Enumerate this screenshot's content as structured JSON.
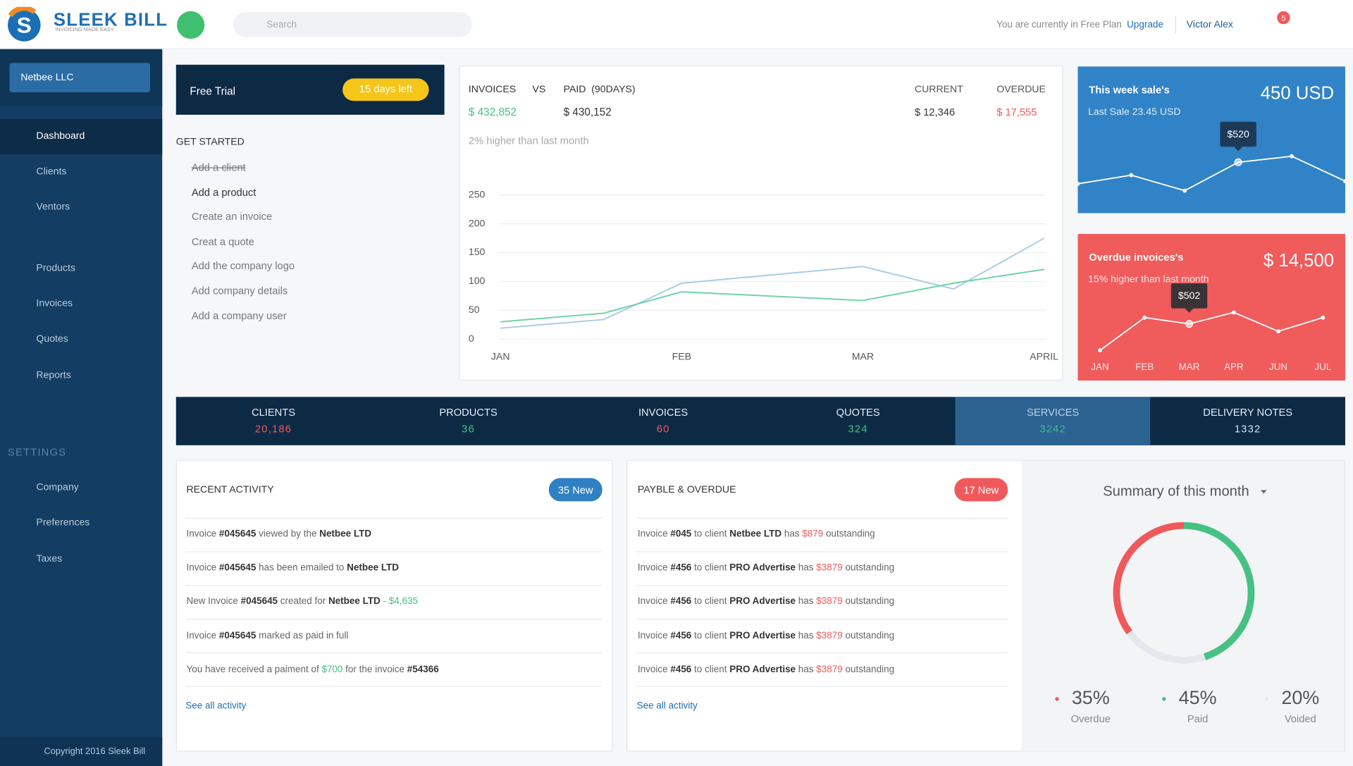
{
  "header": {
    "logo_title": "SLEEK BILL",
    "logo_tagline": "INVOICING MADE EASY",
    "search_placeholder": "Search",
    "plan_text": "You are currently in Free Plan",
    "upgrade": "Upgrade",
    "user": "Victor Alex",
    "notifications": "5"
  },
  "sidebar": {
    "company": "Netbee LLC",
    "menu": [
      "Dashboard",
      "Clients",
      "Ventors",
      "Products",
      "Invoices",
      "Quotes",
      "Reports"
    ],
    "settings_title": "SETTINGS",
    "settings_menu": [
      "Company",
      "Preferences",
      "Taxes"
    ],
    "footer": "Copyright 2016 Sleek Bill"
  },
  "trial": {
    "title": "Free Trial",
    "badge": "15 days left"
  },
  "get_started": {
    "title": "GET STARTED",
    "items": [
      {
        "label": "Add a client",
        "done": true
      },
      {
        "label": "Add a product",
        "done": false
      },
      {
        "label": "Create an invoice",
        "done": false
      },
      {
        "label": "Creat a quote",
        "done": false
      },
      {
        "label": "Add the company logo",
        "done": false
      },
      {
        "label": "Add company details",
        "done": false
      },
      {
        "label": "Add a company user",
        "done": false
      }
    ]
  },
  "overview": {
    "invoices_label": "INVOICES",
    "vs": "VS",
    "paid_label": "PAID  (90DAYS)",
    "current_label": "CURRENT",
    "overdue_label": "OVERDUE",
    "invoices": "$ 432,852",
    "paid": "$ 430,152",
    "current": "$ 12,346",
    "overdue": "$ 17,555",
    "note": "2% higher than last month"
  },
  "charts": {
    "revenue": {
      "type": "line",
      "xlim": [
        0,
        3
      ],
      "xticks": [
        {
          "value": 0,
          "label": "JAN"
        },
        {
          "value": 1,
          "label": "FEB"
        },
        {
          "value": 2,
          "label": "MAR"
        },
        {
          "value": 3,
          "label": "APRIL"
        }
      ],
      "ylim": [
        0,
        250
      ],
      "yticks": [
        0,
        50,
        100,
        150,
        200,
        250
      ],
      "grid": true,
      "x": [
        0,
        0.57,
        1,
        2,
        2.5,
        3
      ],
      "series": [
        {
          "color": "#a6cde8",
          "values": [
            19,
            34,
            97,
            126,
            87,
            175
          ]
        },
        {
          "color": "#6fd3a5",
          "values": [
            30,
            45,
            82,
            67,
            97,
            121
          ]
        }
      ]
    },
    "week_sales": {
      "type": "line",
      "title": "This week sale's",
      "total": "450 USD",
      "subtitle": "Last Sale 23.45 USD",
      "ylim": [
        0,
        1500
      ],
      "color": "#ffffff",
      "values": [
        300,
        388,
        230,
        520,
        582,
        327
      ],
      "value_labels": [
        null,
        null,
        null,
        "$520",
        null,
        null
      ]
    },
    "overdue": {
      "type": "line",
      "title": "Overdue invoices's",
      "total": "$ 14,500",
      "subtitle": "15% higher than last month",
      "ylim": [
        0,
        1300
      ],
      "color": "#ffffff",
      "categories": [
        "JAN",
        "FEB",
        "MAR",
        "APR",
        "JUN",
        "JUL"
      ],
      "values": [
        268,
        558,
        502,
        604,
        436,
        558
      ],
      "value_labels": [
        null,
        null,
        "$502",
        null,
        null,
        null
      ]
    },
    "summary": {
      "type": "donut",
      "title": "Summary of this month",
      "categories": [
        "Overdue",
        "Paid",
        "Voided"
      ],
      "values": [
        35,
        45,
        20
      ],
      "value_labels": [
        "35%",
        "45%",
        "20%"
      ],
      "colors": [
        "#f0595b",
        "#45c283",
        "#e4e8ec"
      ]
    }
  },
  "stats": [
    {
      "label": "CLIENTS",
      "value": "20,186",
      "color": "#f0595b",
      "active": false
    },
    {
      "label": "PRODUCTS",
      "value": "36",
      "color": "#45c283",
      "active": false
    },
    {
      "label": "INVOICES",
      "value": "60",
      "color": "#f0595b",
      "active": false
    },
    {
      "label": "QUOTES",
      "value": "324",
      "color": "#45c283",
      "active": false
    },
    {
      "label": "SERVICES",
      "value": "3242",
      "color": "#3fb894",
      "active": true
    },
    {
      "label": "DELIVERY NOTES",
      "value": "1332",
      "color": "#d3e3f0",
      "active": false
    }
  ],
  "activity": {
    "title": "RECENT ACTIVITY",
    "badge": "35 New",
    "link": "See all activity",
    "rows": [
      [
        {
          "text": "Invoice "
        },
        {
          "text": "#045645",
          "style": "bold"
        },
        {
          "text": " viewed by the "
        },
        {
          "text": "Netbee LTD",
          "style": "bold"
        }
      ],
      [
        {
          "text": "Invoice "
        },
        {
          "text": "#045645",
          "style": "bold"
        },
        {
          "text": " has been emailed to "
        },
        {
          "text": "Netbee LTD",
          "style": "bold"
        }
      ],
      [
        {
          "text": "New Invoice "
        },
        {
          "text": "#045645",
          "style": "bold"
        },
        {
          "text": " created for "
        },
        {
          "text": "Netbee LTD",
          "style": "bold"
        },
        {
          "text": " - $4,635",
          "style": "green"
        }
      ],
      [
        {
          "text": "Invoice "
        },
        {
          "text": "#045645",
          "style": "bold"
        },
        {
          "text": " marked as paid in full"
        }
      ],
      [
        {
          "text": "You have received a paiment of "
        },
        {
          "text": "$700",
          "style": "green"
        },
        {
          "text": " for the invoice "
        },
        {
          "text": "#54366",
          "style": "bold"
        }
      ]
    ]
  },
  "payable": {
    "title": "PAYBLE & OVERDUE",
    "badge": "17 New",
    "link": "See all activity",
    "rows": [
      [
        {
          "text": "Invoice "
        },
        {
          "text": "#045",
          "style": "bold"
        },
        {
          "text": " to client "
        },
        {
          "text": "Netbee LTD",
          "style": "bold"
        },
        {
          "text": " has "
        },
        {
          "text": "$879",
          "style": "red"
        },
        {
          "text": " outstanding"
        }
      ],
      [
        {
          "text": "Invoice "
        },
        {
          "text": "#456",
          "style": "bold"
        },
        {
          "text": " to client "
        },
        {
          "text": "PRO Advertise",
          "style": "bold"
        },
        {
          "text": " has "
        },
        {
          "text": "$3879",
          "style": "red"
        },
        {
          "text": " outstanding"
        }
      ],
      [
        {
          "text": "Invoice "
        },
        {
          "text": "#456",
          "style": "bold"
        },
        {
          "text": " to client "
        },
        {
          "text": "PRO Advertise",
          "style": "bold"
        },
        {
          "text": " has "
        },
        {
          "text": "$3879",
          "style": "red"
        },
        {
          "text": " outstanding"
        }
      ],
      [
        {
          "text": "Invoice "
        },
        {
          "text": "#456",
          "style": "bold"
        },
        {
          "text": " to client "
        },
        {
          "text": "PRO Advertise",
          "style": "bold"
        },
        {
          "text": " has "
        },
        {
          "text": "$3879",
          "style": "red"
        },
        {
          "text": " outstanding"
        }
      ],
      [
        {
          "text": "Invoice "
        },
        {
          "text": "#456",
          "style": "bold"
        },
        {
          "text": " to client "
        },
        {
          "text": "PRO Advertise",
          "style": "bold"
        },
        {
          "text": " has "
        },
        {
          "text": "$3879",
          "style": "red"
        },
        {
          "text": " outstanding"
        }
      ]
    ]
  }
}
